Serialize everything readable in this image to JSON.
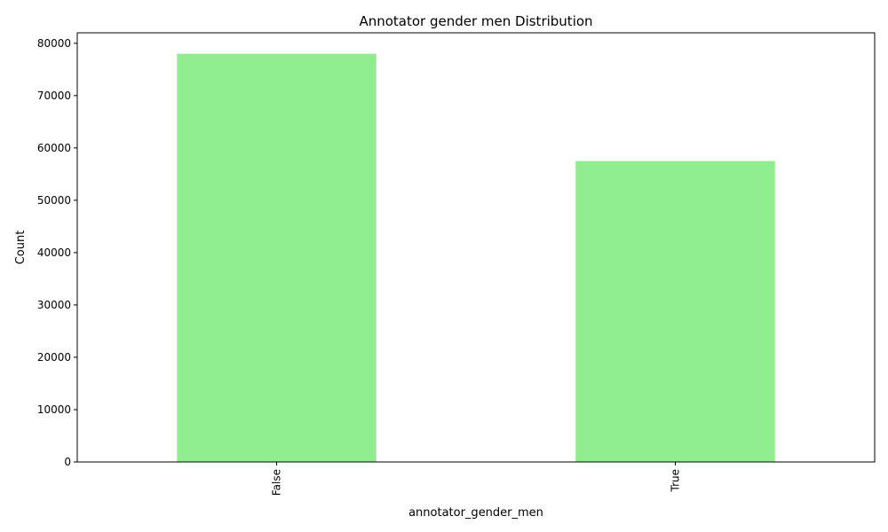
{
  "chart_data": {
    "type": "bar",
    "title": "Annotator gender men Distribution",
    "xlabel": "annotator_gender_men",
    "ylabel": "Count",
    "categories": [
      "False",
      "True"
    ],
    "values": [
      78000,
      57500
    ],
    "ylim": [
      0,
      82000
    ],
    "yticks": [
      0,
      10000,
      20000,
      30000,
      40000,
      50000,
      60000,
      70000,
      80000
    ],
    "bar_color": "#90ee90",
    "grid": false,
    "legend": false
  }
}
